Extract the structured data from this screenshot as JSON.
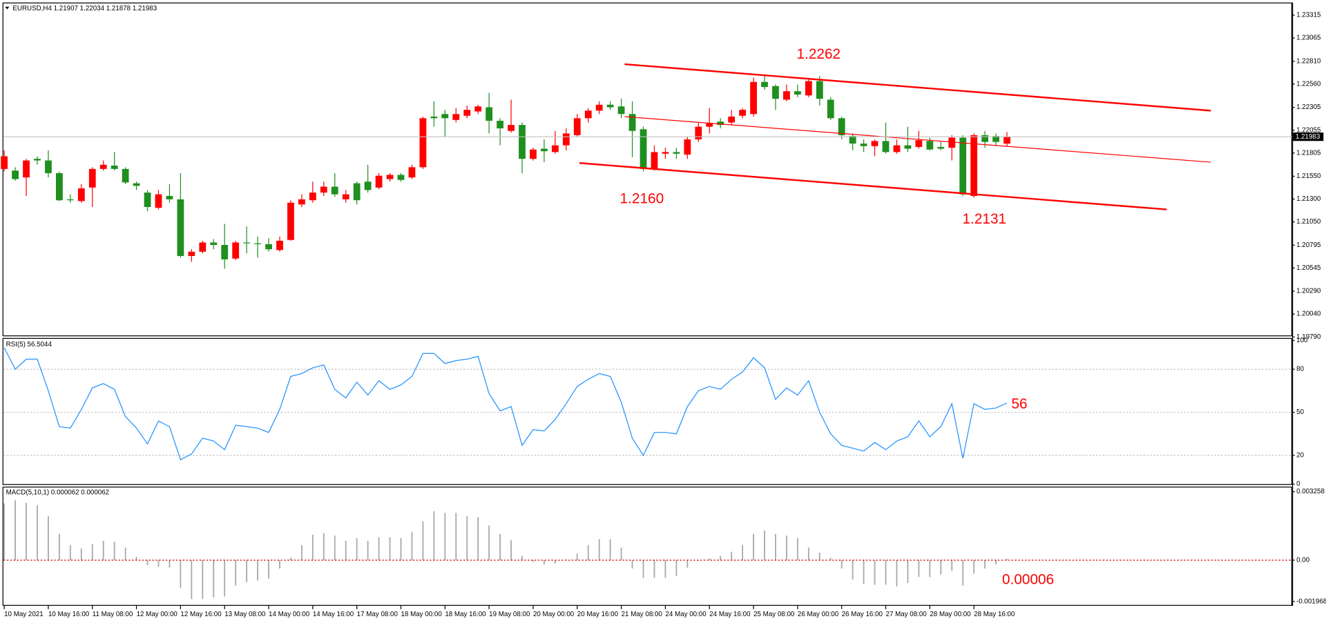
{
  "chart_data": [
    {
      "type": "candlestick",
      "title": "EURUSD,H4  1.21907 1.22034 1.21878 1.21983",
      "categories": [
        "10 May 2021",
        null,
        null,
        null,
        "10 May 16:00",
        null,
        null,
        null,
        "11 May 08:00",
        null,
        null,
        null,
        "12 May 00:00",
        null,
        null,
        null,
        "12 May 16:00",
        null,
        null,
        null,
        "13 May 08:00",
        null,
        null,
        null,
        "14 May 00:00",
        null,
        null,
        null,
        "14 May 16:00",
        null,
        null,
        null,
        "17 May 08:00",
        null,
        null,
        null,
        "18 May 00:00",
        null,
        null,
        null,
        "18 May 16:00",
        null,
        null,
        null,
        "19 May 08:00",
        null,
        null,
        null,
        "20 May 00:00",
        null,
        null,
        null,
        "20 May 16:00",
        null,
        null,
        null,
        "21 May 08:00",
        null,
        null,
        null,
        "24 May 00:00",
        null,
        null,
        null,
        "24 May 16:00",
        null,
        null,
        null,
        "25 May 08:00",
        null,
        null,
        null,
        "26 May 00:00",
        null,
        null,
        null,
        "26 May 16:00",
        null,
        null,
        null,
        "27 May 08:00",
        null,
        null,
        null,
        "28 May 00:00",
        null,
        null,
        null,
        "28 May 16:00",
        null,
        null,
        null
      ],
      "open": [
        1.2163,
        1.21612,
        1.21537,
        1.21741,
        1.21723,
        1.21584,
        1.21297,
        1.21278,
        1.21426,
        1.2163,
        1.21667,
        1.2163,
        1.21473,
        1.21371,
        1.21204,
        1.21334,
        1.21297,
        1.20676,
        1.20723,
        1.20824,
        1.20797,
        1.20648,
        1.20824,
        1.20815,
        1.20806,
        1.20741,
        1.20852,
        1.21241,
        1.21287,
        1.21371,
        1.21436,
        1.21297,
        1.21473,
        1.21491,
        1.21426,
        1.21519,
        1.21565,
        1.21537,
        1.21649,
        1.22204,
        1.22232,
        1.22167,
        1.22213,
        1.2226,
        1.22306,
        1.22158,
        1.22047,
        1.22112,
        1.21741,
        1.21852,
        1.21815,
        1.21889,
        1.22,
        1.22186,
        1.22269,
        1.22334,
        1.22315,
        1.22232,
        1.22065,
        1.2163,
        1.21797,
        1.21815,
        1.21787,
        1.21954,
        1.22093,
        1.22149,
        1.22139,
        1.22213,
        1.22232,
        1.22584,
        1.22538,
        1.22389,
        1.22482,
        1.22436,
        1.22593,
        1.22389,
        1.22186,
        1.21991,
        1.21908,
        1.2188,
        1.21936,
        1.21815,
        1.21889,
        1.21871,
        1.21936,
        1.21871,
        1.21862,
        1.21973,
        1.21334,
        1.22,
        1.21991,
        1.21907
      ],
      "high": [
        1.21834,
        1.21649,
        1.21741,
        1.21769,
        1.21834,
        1.21602,
        1.21352,
        1.21463,
        1.21649,
        1.21723,
        1.21815,
        1.21649,
        1.21491,
        1.21399,
        1.21399,
        1.21463,
        1.21584,
        1.2075,
        1.20843,
        1.20861,
        1.21028,
        1.20843,
        1.21,
        1.20889,
        1.20871,
        1.20889,
        1.21287,
        1.21352,
        1.21491,
        1.21491,
        1.21584,
        1.21399,
        1.21491,
        1.21676,
        1.21584,
        1.21584,
        1.21584,
        1.21676,
        1.22204,
        1.22371,
        1.22278,
        1.22297,
        1.22325,
        1.22334,
        1.22463,
        1.22186,
        1.22389,
        1.22139,
        1.21862,
        1.21954,
        1.22047,
        1.22075,
        1.22232,
        1.22297,
        1.22371,
        1.22371,
        1.22399,
        1.22371,
        1.22093,
        1.21889,
        1.21862,
        1.21862,
        1.21982,
        1.22139,
        1.22297,
        1.22186,
        1.22278,
        1.22297,
        1.2263,
        1.22667,
        1.22556,
        1.22556,
        1.22556,
        1.22621,
        1.22649,
        1.22417,
        1.22204,
        1.22019,
        1.21954,
        1.21954,
        1.22139,
        1.21954,
        1.22093,
        1.22047,
        1.21973,
        1.21926,
        1.22,
        1.22,
        1.22019,
        1.22047,
        1.22019,
        1.22034
      ],
      "low": [
        1.21602,
        1.215,
        1.21334,
        1.21676,
        1.21537,
        1.21278,
        1.2126,
        1.2126,
        1.21213,
        1.21612,
        1.21612,
        1.21463,
        1.21399,
        1.21167,
        1.21186,
        1.2126,
        1.20658,
        1.20611,
        1.20704,
        1.2075,
        1.20537,
        1.2063,
        1.20704,
        1.20658,
        1.20723,
        1.20723,
        1.20843,
        1.21213,
        1.2126,
        1.21334,
        1.21324,
        1.2126,
        1.21241,
        1.21371,
        1.21408,
        1.21491,
        1.21491,
        1.21519,
        1.2163,
        1.22093,
        1.21982,
        1.22139,
        1.22186,
        1.22232,
        1.22019,
        1.21889,
        1.22028,
        1.21584,
        1.21723,
        1.21704,
        1.21797,
        1.21834,
        1.21982,
        1.22139,
        1.22232,
        1.22278,
        1.22186,
        1.2176,
        1.21602,
        1.21612,
        1.21741,
        1.21741,
        1.21741,
        1.21926,
        1.22019,
        1.22075,
        1.22112,
        1.22186,
        1.22204,
        1.225,
        1.22278,
        1.22371,
        1.22417,
        1.22417,
        1.22325,
        1.22167,
        1.21954,
        1.21834,
        1.21815,
        1.21769,
        1.21797,
        1.21797,
        1.21815,
        1.21852,
        1.21834,
        1.21834,
        1.21723,
        1.21334,
        1.21315,
        1.21862,
        1.2188,
        1.21878
      ],
      "close": [
        1.21769,
        1.21519,
        1.21723,
        1.21723,
        1.21584,
        1.21287,
        1.21287,
        1.21417,
        1.2163,
        1.21676,
        1.2163,
        1.21482,
        1.21445,
        1.21213,
        1.21352,
        1.21297,
        1.20676,
        1.20723,
        1.20824,
        1.20797,
        1.20639,
        1.20824,
        1.20815,
        1.20806,
        1.2075,
        1.20843,
        1.2126,
        1.21297,
        1.21371,
        1.21436,
        1.21352,
        1.21352,
        1.21287,
        1.21399,
        1.21556,
        1.21565,
        1.2151,
        1.21649,
        1.22186,
        1.22186,
        1.22186,
        1.22232,
        1.22278,
        1.22315,
        1.22158,
        1.22075,
        1.22112,
        1.21741,
        1.21843,
        1.21824,
        1.21889,
        1.22019,
        1.22186,
        1.22269,
        1.22334,
        1.22306,
        1.22232,
        1.22047,
        1.2163,
        1.21815,
        1.21815,
        1.21797,
        1.21954,
        1.22093,
        1.2213,
        1.22112,
        1.22204,
        1.22278,
        1.22584,
        1.22528,
        1.22399,
        1.22482,
        1.22445,
        1.22593,
        1.22399,
        1.22186,
        1.22,
        1.21908,
        1.2188,
        1.21936,
        1.21815,
        1.21889,
        1.21852,
        1.21945,
        1.21843,
        1.21852,
        1.21973,
        1.21352,
        1.22,
        1.21926,
        1.21926,
        1.21983
      ],
      "up_color": "#ff0000",
      "down_color": "#1f8f1f",
      "ylim": [
        1.198,
        1.2344
      ],
      "yticks": [
        {
          "value": 1.1979,
          "label": "1.19790"
        },
        {
          "value": 1.2004,
          "label": "1.20040"
        },
        {
          "value": 1.2029,
          "label": "1.20290"
        },
        1.20545,
        1.20795,
        {
          "value": 1.2105,
          "label": "1.21050"
        },
        {
          "value": 1.213,
          "label": "1.21300"
        },
        {
          "value": 1.2155,
          "label": "1.21550"
        },
        1.21805,
        1.22055,
        1.22305,
        {
          "value": 1.2256,
          "label": "1.22560"
        },
        {
          "value": 1.2281,
          "label": "1.22810"
        },
        1.23065,
        1.23315
      ],
      "current_price": 1.21983,
      "current_price_color": "#c0c0c0",
      "trendlines": [
        {
          "color": "#ff0000",
          "width": 2,
          "x": [
            56.3,
            109.5
          ],
          "y": [
            1.22778,
            1.22269
          ]
        },
        {
          "color": "#ff0000",
          "width": 1,
          "x": [
            56.3,
            109.5
          ],
          "y": [
            1.22204,
            1.21704
          ]
        },
        {
          "color": "#ff0000",
          "width": 2,
          "x": [
            52.2,
            105.5
          ],
          "y": [
            1.21695,
            1.21186
          ]
        }
      ],
      "annotations": [
        "1.2262",
        "1.2160",
        "1.2131"
      ]
    },
    {
      "type": "line",
      "title": "RSI(5) 56.5044",
      "color": "#1e90ff",
      "values": [
        95,
        80,
        87,
        87,
        65,
        40,
        39,
        52,
        67,
        70,
        66,
        47,
        39,
        28,
        44,
        40,
        17,
        21,
        32,
        30,
        24,
        41,
        40,
        39,
        36,
        52,
        75,
        77,
        81,
        83,
        66,
        60,
        71,
        62,
        72,
        66,
        69,
        75,
        91,
        91,
        84,
        86,
        87,
        89,
        63,
        51,
        54,
        27,
        38,
        37,
        45,
        56,
        68,
        73,
        77,
        75,
        57,
        32,
        20,
        36,
        36,
        35,
        54,
        65,
        68,
        66,
        73,
        78,
        88,
        81,
        59,
        67,
        62,
        72,
        50,
        35,
        27,
        25,
        23,
        29,
        24,
        30,
        33,
        44,
        33,
        40,
        56,
        18,
        56,
        52,
        53,
        56.5044
      ],
      "ylim": [
        0,
        100
      ],
      "yticks": [
        0,
        20,
        50,
        80,
        100
      ],
      "gridlines": [
        20,
        50,
        80
      ],
      "annotation": "56"
    },
    {
      "type": "bar",
      "title": "MACD(5,10,1) 0.000062 0.000062",
      "color": "#a9a9a9",
      "zero_line_color": "#cc0000",
      "values": [
        0.0027,
        0.00285,
        0.00273,
        0.00261,
        0.00209,
        0.00125,
        0.00072,
        0.00056,
        0.00076,
        0.00092,
        0.00088,
        0.0006,
        0.00016,
        -0.00024,
        -0.00032,
        -0.00036,
        -0.00133,
        -0.00185,
        -0.00185,
        -0.00177,
        -0.00173,
        -0.00121,
        -0.00105,
        -0.00096,
        -0.00088,
        -0.0004,
        0.00012,
        0.00072,
        0.00121,
        0.00129,
        0.00117,
        0.00092,
        0.00105,
        0.00092,
        0.00109,
        0.00109,
        0.00105,
        0.00133,
        0.00185,
        0.00233,
        0.00225,
        0.00225,
        0.00209,
        0.00205,
        0.00165,
        0.00125,
        0.00096,
        0.0002,
        -8e-05,
        -0.0002,
        -0.00016,
        4e-05,
        0.00032,
        0.00072,
        0.001,
        0.001,
        0.0006,
        -0.0004,
        -0.00084,
        -0.00084,
        -0.00084,
        -0.00076,
        -0.00036,
        -4e-05,
        8e-05,
        0.0002,
        0.0004,
        0.00072,
        0.00125,
        0.00141,
        0.00125,
        0.00117,
        0.00105,
        0.0006,
        0.00036,
        0.00012,
        -0.0004,
        -0.00092,
        -0.00113,
        -0.00117,
        -0.00117,
        -0.00125,
        -0.00109,
        -0.0008,
        -0.0008,
        -0.00068,
        -0.00052,
        -0.00121,
        -0.00064,
        -0.0004,
        -0.0002,
        6.2e-05
      ],
      "ylim": [
        -0.0022,
        0.00345
      ],
      "yticks": [
        -0.001968,
        {
          "value": 0,
          "label": "0.00"
        },
        0.003258
      ],
      "annotation": "0.00006"
    }
  ]
}
